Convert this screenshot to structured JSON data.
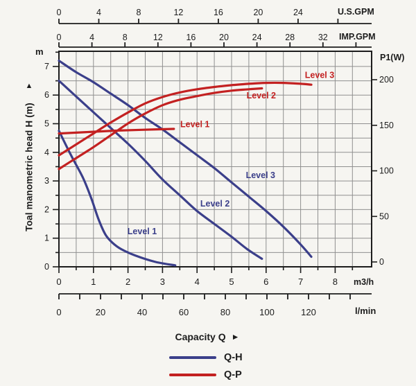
{
  "labels": {
    "m_unit": "m",
    "p1_unit": "P1(W)",
    "us_gpm_unit": "U.S.GPM",
    "imp_gpm_unit": "IMP.GPM",
    "m3h_unit": "m3/h",
    "lmin_unit": "l/min",
    "y_axis_title": "Toal manometric head H (m)",
    "up_arrow": "▲",
    "right_arrow": "►",
    "capacity": "Capacity Q"
  },
  "colors": {
    "qh_blue": "#3b3f8a",
    "qp_red": "#c32121",
    "grid": "#8f8f8f",
    "axis": "#1c1c1c",
    "background": "#f6f5f1"
  },
  "chart_data": {
    "type": "line",
    "x_axes": {
      "us_gpm": {
        "label": "U.S.GPM",
        "ticks": [
          0,
          4,
          8,
          12,
          16,
          20,
          24
        ],
        "unlabeled_ticks": [
          28
        ]
      },
      "imp_gpm": {
        "label": "IMP.GPM",
        "ticks": [
          0,
          4,
          8,
          12,
          16,
          20,
          24,
          28,
          32
        ],
        "unlabeled_ticks": [
          36
        ]
      },
      "m3h": {
        "label": "m3/h",
        "ticks": [
          0,
          1,
          2,
          3,
          4,
          5,
          6,
          7,
          8
        ],
        "minor_step": 0.5,
        "range": [
          0,
          9
        ]
      },
      "lmin": {
        "label": "l/min",
        "ticks": [
          0,
          20,
          40,
          60,
          80,
          100,
          120
        ],
        "minor_step": 10,
        "range": [
          0,
          140
        ]
      }
    },
    "y_axes": {
      "head_m": {
        "label": "Toal manometric head H (m)",
        "unit": "m",
        "ticks": [
          0,
          1,
          2,
          3,
          4,
          5,
          6,
          7
        ],
        "minor_step": 0.5,
        "range": [
          0,
          7.5
        ]
      },
      "power_w": {
        "label": "P1(W)",
        "ticks": [
          0,
          50,
          100,
          150,
          200
        ],
        "range": [
          0,
          235
        ]
      }
    },
    "grid": true,
    "series": [
      {
        "id": "qh-level1",
        "name": "Level 1",
        "kind": "Q-H",
        "y_axis": "head_m",
        "color": "#3b3f8a",
        "points": [
          [
            0,
            4.75
          ],
          [
            0.35,
            3.9
          ],
          [
            0.7,
            3.1
          ],
          [
            0.95,
            2.35
          ],
          [
            1.15,
            1.65
          ],
          [
            1.35,
            1.12
          ],
          [
            1.55,
            0.84
          ],
          [
            1.8,
            0.62
          ],
          [
            2.2,
            0.4
          ],
          [
            2.8,
            0.17
          ],
          [
            3.37,
            0.05
          ]
        ]
      },
      {
        "id": "qh-level2",
        "name": "Level 2",
        "kind": "Q-H",
        "y_axis": "head_m",
        "color": "#3b3f8a",
        "points": [
          [
            0,
            6.5
          ],
          [
            0.5,
            5.95
          ],
          [
            1,
            5.4
          ],
          [
            1.5,
            4.85
          ],
          [
            2,
            4.3
          ],
          [
            2.5,
            3.7
          ],
          [
            3,
            3.05
          ],
          [
            3.5,
            2.5
          ],
          [
            4,
            1.95
          ],
          [
            4.5,
            1.5
          ],
          [
            5,
            1.05
          ],
          [
            5.45,
            0.62
          ],
          [
            5.88,
            0.28
          ]
        ]
      },
      {
        "id": "qh-level3",
        "name": "Level 3",
        "kind": "Q-H",
        "y_axis": "head_m",
        "color": "#3b3f8a",
        "points": [
          [
            0,
            7.2
          ],
          [
            0.5,
            6.8
          ],
          [
            1,
            6.45
          ],
          [
            1.5,
            6.05
          ],
          [
            2,
            5.65
          ],
          [
            2.5,
            5.2
          ],
          [
            3,
            4.8
          ],
          [
            3.5,
            4.35
          ],
          [
            4,
            3.9
          ],
          [
            4.5,
            3.45
          ],
          [
            5,
            2.95
          ],
          [
            5.5,
            2.45
          ],
          [
            6,
            1.95
          ],
          [
            6.5,
            1.4
          ],
          [
            7,
            0.78
          ],
          [
            7.31,
            0.35
          ]
        ]
      },
      {
        "id": "qp-level1",
        "name": "Level 1",
        "kind": "Q-P",
        "y_axis": "power_w",
        "color": "#c32121",
        "points": [
          [
            0,
            141
          ],
          [
            0.8,
            142.5
          ],
          [
            1.6,
            144
          ],
          [
            2.4,
            145
          ],
          [
            3.33,
            146
          ]
        ]
      },
      {
        "id": "qp-level2",
        "name": "Level 2",
        "kind": "Q-P",
        "y_axis": "power_w",
        "color": "#c32121",
        "points": [
          [
            0,
            102
          ],
          [
            0.5,
            114
          ],
          [
            1,
            126
          ],
          [
            1.5,
            139
          ],
          [
            2,
            152
          ],
          [
            2.5,
            163
          ],
          [
            3,
            172
          ],
          [
            3.5,
            178
          ],
          [
            4,
            182
          ],
          [
            4.5,
            185.5
          ],
          [
            5,
            188
          ],
          [
            5.5,
            189.5
          ],
          [
            5.88,
            190.5
          ]
        ]
      },
      {
        "id": "qp-level3",
        "name": "Level 3",
        "kind": "Q-P",
        "y_axis": "power_w",
        "color": "#c32121",
        "points": [
          [
            0,
            117
          ],
          [
            0.5,
            129
          ],
          [
            1,
            141
          ],
          [
            1.5,
            153
          ],
          [
            2,
            164
          ],
          [
            2.5,
            174
          ],
          [
            3,
            181
          ],
          [
            3.5,
            186
          ],
          [
            4,
            189.5
          ],
          [
            4.5,
            192
          ],
          [
            5,
            194
          ],
          [
            5.5,
            195.5
          ],
          [
            6,
            196.5
          ],
          [
            6.5,
            196.5
          ],
          [
            7,
            195.5
          ],
          [
            7.31,
            194.5
          ]
        ]
      }
    ],
    "curve_labels": [
      {
        "text": "Level 1",
        "series": "qh-level1",
        "color": "#3b3f8a",
        "q": 2.41,
        "h": 1.24
      },
      {
        "text": "Level 2",
        "series": "qh-level2",
        "color": "#3b3f8a",
        "q": 4.52,
        "h": 2.2
      },
      {
        "text": "Level 3",
        "series": "qh-level3",
        "color": "#3b3f8a",
        "q": 5.84,
        "h": 3.2
      },
      {
        "text": "Level 1",
        "series": "qp-level1",
        "color": "#c32121",
        "q": 3.94,
        "p": 151
      },
      {
        "text": "Level 2",
        "series": "qp-level2",
        "color": "#c32121",
        "q": 5.86,
        "p": 182.5
      },
      {
        "text": "Level 3",
        "series": "qp-level3",
        "color": "#c32121",
        "q": 7.55,
        "p": 205
      }
    ],
    "legend": {
      "title": "Capacity Q",
      "items": [
        {
          "label": "Q-H",
          "color": "#3b3f8a"
        },
        {
          "label": "Q-P",
          "color": "#c32121"
        }
      ]
    }
  }
}
